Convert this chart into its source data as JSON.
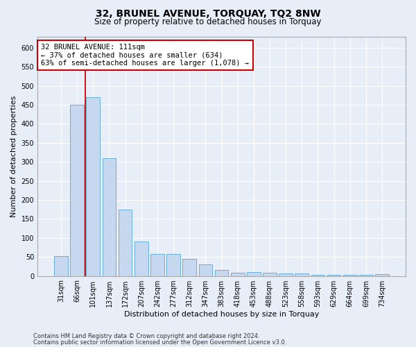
{
  "title": "32, BRUNEL AVENUE, TORQUAY, TQ2 8NW",
  "subtitle": "Size of property relative to detached houses in Torquay",
  "xlabel": "Distribution of detached houses by size in Torquay",
  "ylabel": "Number of detached properties",
  "categories": [
    "31sqm",
    "66sqm",
    "101sqm",
    "137sqm",
    "172sqm",
    "207sqm",
    "242sqm",
    "277sqm",
    "312sqm",
    "347sqm",
    "383sqm",
    "418sqm",
    "453sqm",
    "488sqm",
    "523sqm",
    "558sqm",
    "593sqm",
    "629sqm",
    "664sqm",
    "699sqm",
    "734sqm"
  ],
  "values": [
    53,
    450,
    470,
    310,
    175,
    90,
    57,
    57,
    44,
    31,
    15,
    9,
    10,
    8,
    7,
    7,
    3,
    3,
    2,
    2,
    4
  ],
  "bar_color": "#c5d8f0",
  "bar_edge_color": "#6aaed6",
  "annotation_text": "32 BRUNEL AVENUE: 111sqm\n← 37% of detached houses are smaller (634)\n63% of semi-detached houses are larger (1,078) →",
  "annotation_box_color": "#ffffff",
  "annotation_box_edge_color": "#cc0000",
  "footnote1": "Contains HM Land Registry data © Crown copyright and database right 2024.",
  "footnote2": "Contains public sector information licensed under the Open Government Licence v3.0.",
  "bg_color": "#e8eef8",
  "plot_bg_color": "#e8eef8",
  "grid_color": "#ffffff",
  "ylim": [
    0,
    630
  ],
  "yticks": [
    0,
    50,
    100,
    150,
    200,
    250,
    300,
    350,
    400,
    450,
    500,
    550,
    600
  ],
  "red_line_x": 2.5,
  "title_fontsize": 10,
  "subtitle_fontsize": 8.5,
  "ylabel_fontsize": 8,
  "xlabel_fontsize": 8,
  "tick_fontsize": 7,
  "annot_fontsize": 7.5
}
